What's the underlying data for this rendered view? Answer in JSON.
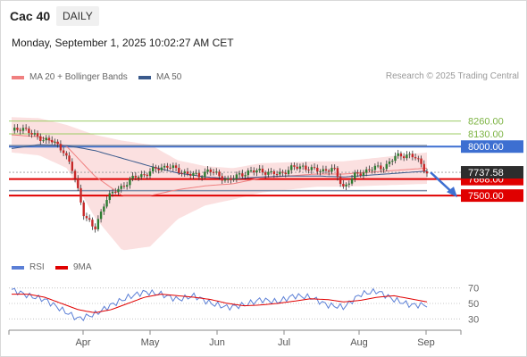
{
  "header": {
    "symbol": "Cac 40",
    "timeframe": "DAILY",
    "datetime": "Monday, September 1, 2025 10:02:27 AM CET"
  },
  "legend": {
    "price": [
      {
        "label": "MA 20 + Bollinger Bands",
        "color": "#f08080"
      },
      {
        "label": "MA 50",
        "color": "#3a5a8c"
      }
    ],
    "rsi": [
      {
        "label": "RSI",
        "color": "#5b7fd6"
      },
      {
        "label": "9MA",
        "color": "#e00000"
      }
    ]
  },
  "copyright": "Research © 2025 Trading Central",
  "colors": {
    "resistance": "#9ccc65",
    "blue_level": "#3d6fd1",
    "red_level": "#e00000",
    "price_tag": "#2d2d2d",
    "band_fill": "#fbe0e0",
    "up_candle": "#2e7d32",
    "down_candle": "#c62828",
    "arrow": "#3d6fd1"
  },
  "chart_data": [
    {
      "type": "candlestick",
      "title": "Cac 40",
      "x_ticks": [
        "Apr",
        "May",
        "Jun",
        "Jul",
        "Aug",
        "Sep"
      ],
      "ylim": [
        6900,
        8330
      ],
      "levels": [
        {
          "value": 8260.0,
          "label": "8260.00",
          "kind": "resistance"
        },
        {
          "value": 8130.0,
          "label": "8130.00",
          "kind": "resistance"
        },
        {
          "value": 8000.0,
          "label": "8000.00",
          "kind": "pivot"
        },
        {
          "value": 7668.0,
          "label": "7668.00",
          "kind": "support"
        },
        {
          "value": 7500.0,
          "label": "7500.00",
          "kind": "support"
        }
      ],
      "last_price": {
        "value": 7737.58,
        "label": "7737.58"
      },
      "forecast_arrow": {
        "from": 7737.58,
        "to": 7500.0
      },
      "series": [
        {
          "name": "MA 20 + Bollinger Bands",
          "values": [
            8120,
            8100,
            8000,
            7700,
            7500,
            7500,
            7560,
            7600,
            7620,
            7680,
            7700,
            7720,
            7720,
            7740,
            7760,
            7780
          ]
        },
        {
          "name": "MA 50",
          "values": [
            7980,
            8020,
            8010,
            7960,
            7880,
            7800,
            7730,
            7690,
            7670,
            7690,
            7700,
            7700,
            7690,
            7710,
            7730,
            7750
          ]
        }
      ]
    },
    {
      "type": "line",
      "title": "RSI",
      "ylim": [
        20,
        80
      ],
      "y_ticks": [
        70,
        50,
        30
      ],
      "series": [
        {
          "name": "RSI",
          "values": [
            68,
            60,
            55,
            42,
            30,
            36,
            48,
            58,
            65,
            62,
            55,
            60,
            50,
            45,
            48,
            55,
            52,
            60,
            58,
            48,
            45,
            62,
            66,
            55,
            48,
            48
          ]
        },
        {
          "name": "9MA",
          "values": [
            62,
            62,
            58,
            50,
            42,
            38,
            42,
            50,
            58,
            62,
            60,
            58,
            55,
            50,
            47,
            48,
            50,
            53,
            56,
            55,
            52,
            54,
            58,
            60,
            56,
            52
          ]
        }
      ]
    }
  ]
}
